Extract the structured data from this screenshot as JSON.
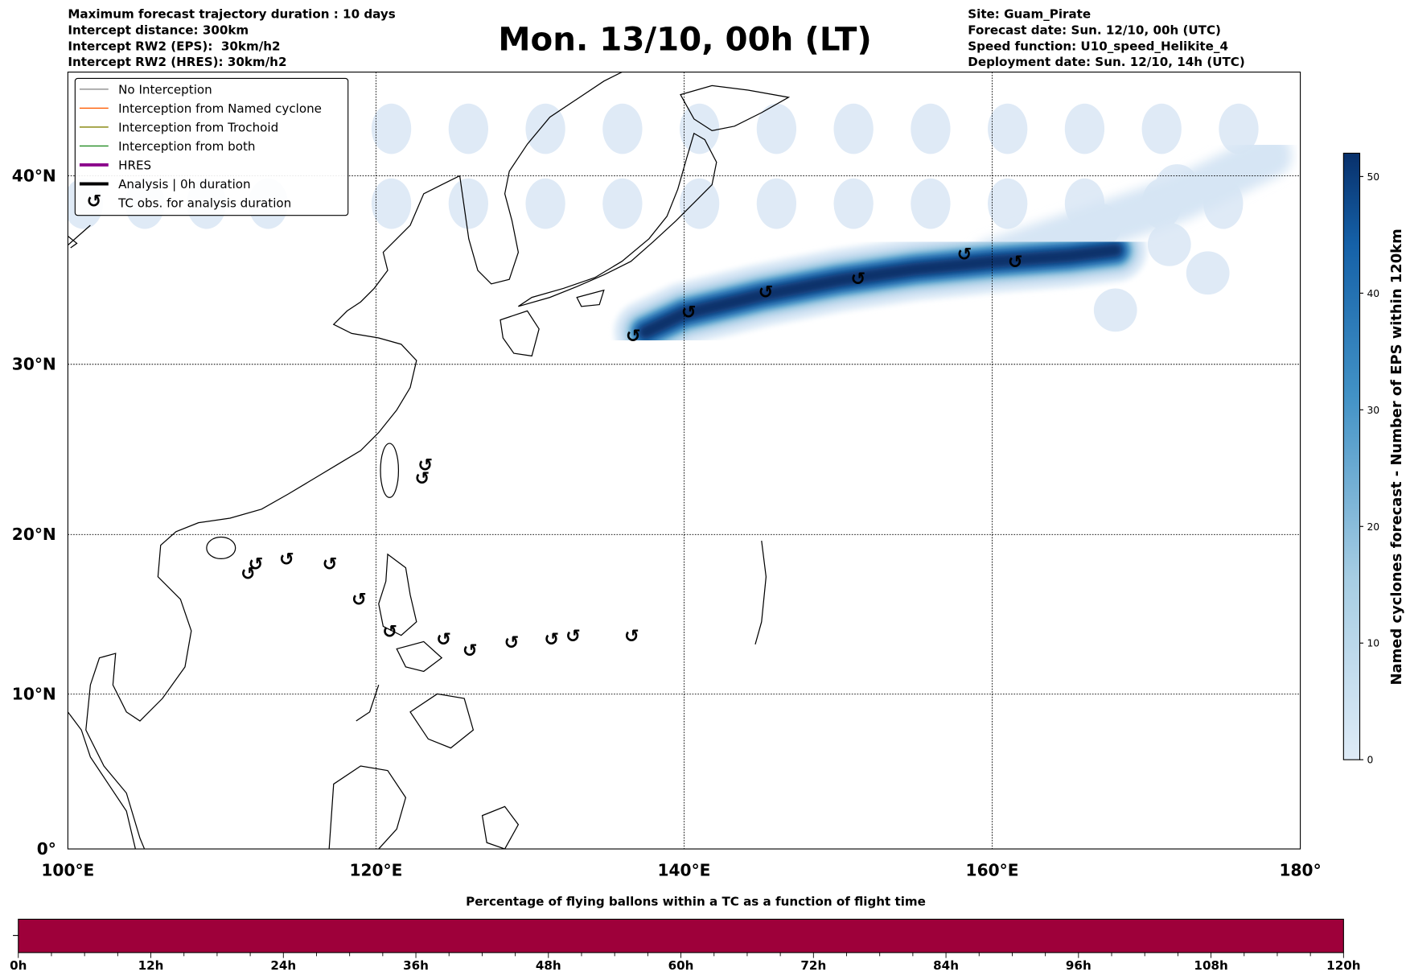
{
  "header": {
    "left": [
      "Maximum forecast trajectory duration : 10 days",
      "Intercept distance: 300km",
      "Intercept RW2 (EPS):  30km/h2",
      "Intercept RW2 (HRES): 30km/h2"
    ],
    "title": "Mon. 13/10, 00h (LT)",
    "right": [
      "Site: Guam_Pirate",
      "Forecast date: Sun. 12/10, 00h (UTC)",
      "Speed function: U10_speed_Helikite_4",
      "Deployment date: Sun. 12/10, 14h (UTC)"
    ]
  },
  "legend": [
    {
      "label": "No Interception",
      "color": "#808080",
      "kind": "line"
    },
    {
      "label": "Interception from Named cyclone",
      "color": "#ff5a00",
      "kind": "line"
    },
    {
      "label": "Interception from Trochoid",
      "color": "#808000",
      "kind": "line"
    },
    {
      "label": "Interception from both",
      "color": "#228b22",
      "kind": "line"
    },
    {
      "label": "HRES",
      "color": "#8b008b",
      "kind": "thick"
    },
    {
      "label": "Analysis | 0h duration",
      "color": "#000000",
      "kind": "thick"
    },
    {
      "label": "TC obs. for analysis duration",
      "color": "#000000",
      "kind": "symbol",
      "symbol": "↺"
    }
  ],
  "map": {
    "lon_range": [
      100,
      180
    ],
    "lat_range": [
      0,
      46.4
    ],
    "lon_ticks": [
      {
        "value": 100,
        "label": "100°E"
      },
      {
        "value": 120,
        "label": "120°E"
      },
      {
        "value": 140,
        "label": "140°E"
      },
      {
        "value": 160,
        "label": "160°E"
      },
      {
        "value": 180,
        "label": "180°"
      }
    ],
    "lat_ticks": [
      {
        "value": 0,
        "label": "0°"
      },
      {
        "value": 10,
        "label": "10°N"
      },
      {
        "value": 20,
        "label": "20°N"
      },
      {
        "value": 30,
        "label": "30°N"
      },
      {
        "value": 40,
        "label": "40°N"
      }
    ],
    "tc_symbol": "↺",
    "tc_obs": [
      [
        136.7,
        31.6
      ],
      [
        140.3,
        32.9
      ],
      [
        145.3,
        34.0
      ],
      [
        151.3,
        34.7
      ],
      [
        158.2,
        36.0
      ],
      [
        161.5,
        35.6
      ],
      [
        123.2,
        24.2
      ],
      [
        123.0,
        23.4
      ],
      [
        112.2,
        18.2
      ],
      [
        111.7,
        17.6
      ],
      [
        114.2,
        18.5
      ],
      [
        117.0,
        18.2
      ],
      [
        118.9,
        16.0
      ],
      [
        120.9,
        14.0
      ],
      [
        124.4,
        13.5
      ],
      [
        126.1,
        12.8
      ],
      [
        128.8,
        13.3
      ],
      [
        131.4,
        13.5
      ],
      [
        132.8,
        13.7
      ],
      [
        136.6,
        13.7
      ]
    ],
    "forecast_track": [
      [
        137.5,
        31.8
      ],
      [
        140,
        32.8
      ],
      [
        145,
        33.8
      ],
      [
        150,
        34.6
      ],
      [
        155,
        35.2
      ],
      [
        160,
        35.6
      ],
      [
        165,
        35.9
      ],
      [
        168,
        36.2
      ]
    ]
  },
  "colorbar": {
    "label": "Named cyclones forecast - Number of EPS within 120km",
    "min": 0,
    "max": 52,
    "ticks": [
      "0",
      "10",
      "20",
      "30",
      "40",
      "50"
    ],
    "color_low": "#deebf7",
    "color_high": "#08306b"
  },
  "timebar": {
    "title": "Percentage of flying ballons within a TC as a function of flight time",
    "fill_percent": 100,
    "color": "#9e003a",
    "ticks": [
      "0h",
      "12h",
      "24h",
      "36h",
      "48h",
      "60h",
      "72h",
      "84h",
      "96h",
      "108h",
      "120h"
    ]
  }
}
